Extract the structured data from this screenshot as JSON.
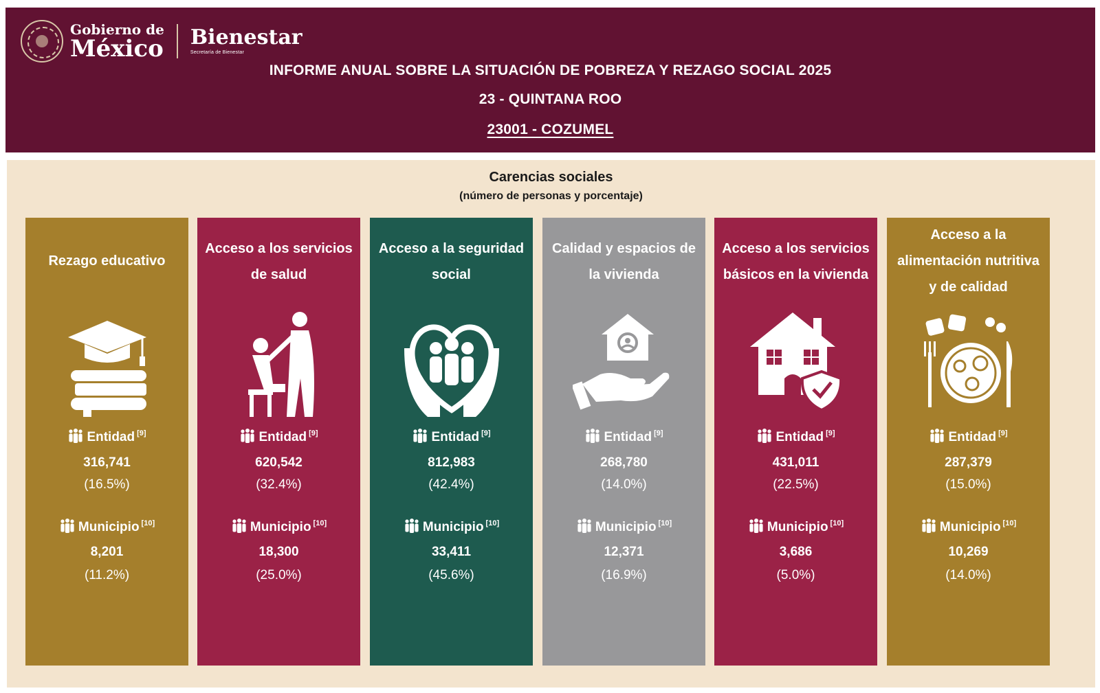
{
  "header": {
    "logo_gobierno_line1": "Gobierno de",
    "logo_gobierno_line2": "México",
    "logo_bienestar": "Bienestar",
    "logo_bienestar_sub": "Secretaría de Bienestar",
    "title": "INFORME ANUAL SOBRE LA SITUACIÓN DE POBREZA Y REZAGO SOCIAL 2025",
    "state": "23 - QUINTANA ROO",
    "municipality": "23001 - COZUMEL",
    "background_color": "#611232"
  },
  "section": {
    "title": "Carencias sociales",
    "subtitle": "(número de personas y porcentaje)",
    "background_color": "#f3e4ce"
  },
  "cards": [
    {
      "title_lines": [
        "Rezago educativo"
      ],
      "icon": "graduation-cap-books-icon",
      "color": "#a57f2c",
      "entidad_label": "Entidad",
      "entidad_ref": "[9]",
      "entidad_value": "316,741",
      "entidad_pct": "(16.5%)",
      "municipio_label": "Municipio",
      "municipio_ref": "[10]",
      "municipio_value": "8,201",
      "municipio_pct": "(11.2%)"
    },
    {
      "title_lines": [
        "Acceso a los servicios",
        "de salud"
      ],
      "icon": "health-caregiver-icon",
      "color": "#9b2247",
      "entidad_label": "Entidad",
      "entidad_ref": "[9]",
      "entidad_value": "620,542",
      "entidad_pct": "(32.4%)",
      "municipio_label": "Municipio",
      "municipio_ref": "[10]",
      "municipio_value": "18,300",
      "municipio_pct": "(25.0%)"
    },
    {
      "title_lines": [
        "Acceso a la seguridad",
        "social"
      ],
      "icon": "hands-family-heart-icon",
      "color": "#1e5b4f",
      "entidad_label": "Entidad",
      "entidad_ref": "[9]",
      "entidad_value": "812,983",
      "entidad_pct": "(42.4%)",
      "municipio_label": "Municipio",
      "municipio_ref": "[10]",
      "municipio_value": "33,411",
      "municipio_pct": "(45.6%)"
    },
    {
      "title_lines": [
        "Calidad y espacios de",
        "la vivienda"
      ],
      "icon": "hand-house-icon",
      "color": "#98989a",
      "entidad_label": "Entidad",
      "entidad_ref": "[9]",
      "entidad_value": "268,780",
      "entidad_pct": "(14.0%)",
      "municipio_label": "Municipio",
      "municipio_ref": "[10]",
      "municipio_value": "12,371",
      "municipio_pct": "(16.9%)"
    },
    {
      "title_lines": [
        "Acceso a los servicios",
        "básicos en la vivienda"
      ],
      "icon": "house-shield-icon",
      "color": "#9b2247",
      "entidad_label": "Entidad",
      "entidad_ref": "[9]",
      "entidad_value": "431,011",
      "entidad_pct": "(22.5%)",
      "municipio_label": "Municipio",
      "municipio_ref": "[10]",
      "municipio_value": "3,686",
      "municipio_pct": "(5.0%)"
    },
    {
      "title_lines": [
        "Acceso a la",
        "alimentación nutritiva",
        "y de calidad"
      ],
      "icon": "plate-fork-knife-icon",
      "color": "#a57f2c",
      "entidad_label": "Entidad",
      "entidad_ref": "[9]",
      "entidad_value": "287,379",
      "entidad_pct": "(15.0%)",
      "municipio_label": "Municipio",
      "municipio_ref": "[10]",
      "municipio_value": "10,269",
      "municipio_pct": "(14.0%)"
    }
  ]
}
